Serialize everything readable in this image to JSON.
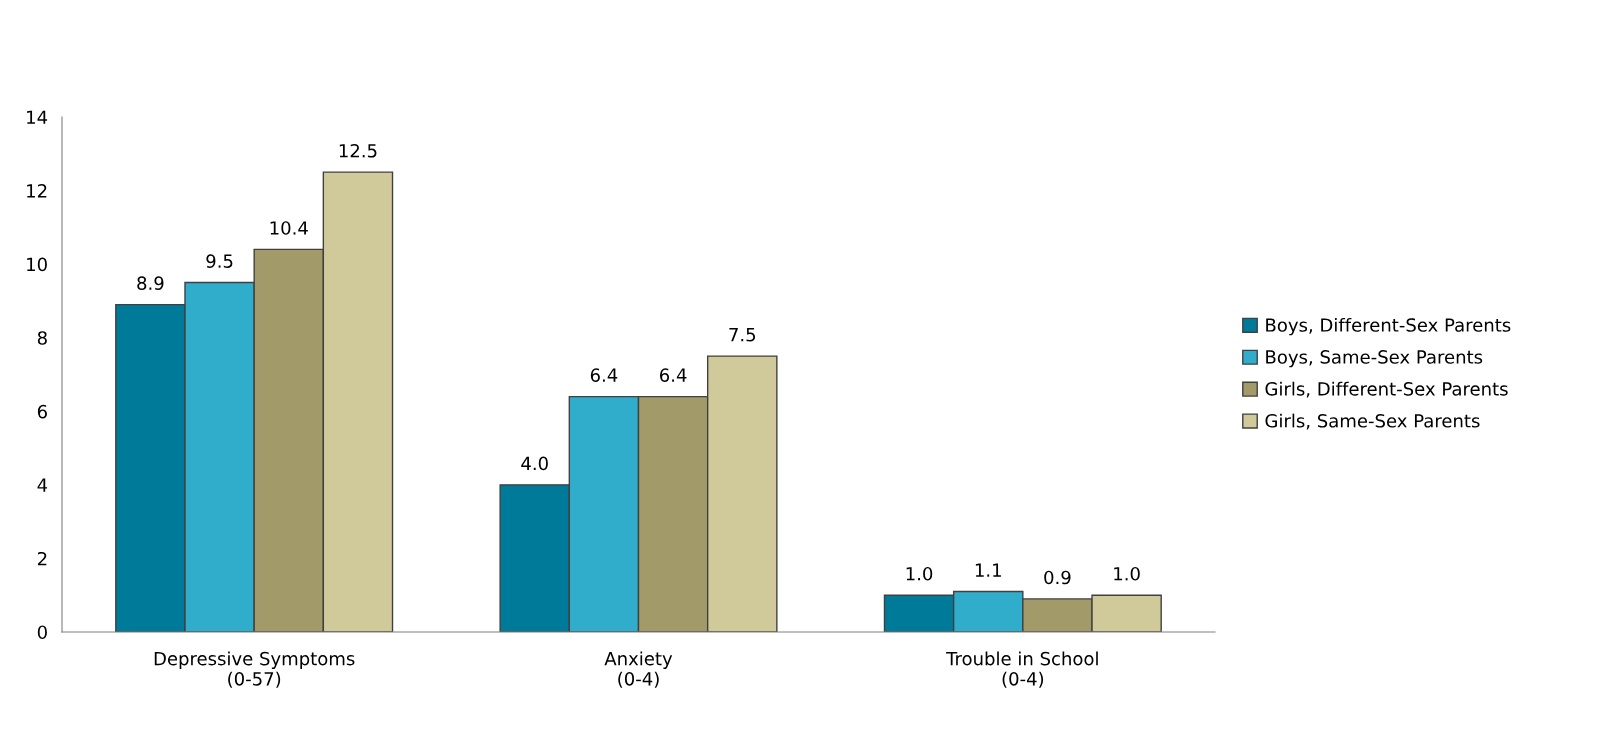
{
  "chart_data": {
    "type": "bar",
    "categories": [
      "Depressive Symptoms\n(0-57)",
      "Anxiety\n(0-4)",
      "Trouble in School\n(0-4)"
    ],
    "series": [
      {
        "name": "Boys, Different-Sex Parents",
        "color": "#007a99",
        "values": [
          8.9,
          4.0,
          1.0
        ],
        "value_labels": [
          "8.9",
          "4.0",
          "1.0"
        ]
      },
      {
        "name": "Boys, Same-Sex Parents",
        "color": "#31adcc",
        "values": [
          9.5,
          6.4,
          1.1
        ],
        "value_labels": [
          "9.5",
          "6.4",
          "1.1"
        ]
      },
      {
        "name": "Girls, Different-Sex Parents",
        "color": "#a39a6a",
        "values": [
          10.4,
          6.4,
          0.9
        ],
        "value_labels": [
          "10.4",
          "6.4",
          "0.9"
        ]
      },
      {
        "name": "Girls, Same-Sex Parents",
        "color": "#d0c99a",
        "values": [
          12.5,
          7.5,
          1.0
        ],
        "value_labels": [
          "12.5",
          "7.5",
          "1.0"
        ]
      }
    ],
    "ylim": [
      0,
      14
    ],
    "yticks": [
      0,
      2,
      4,
      6,
      8,
      10,
      12,
      14
    ],
    "grid": false,
    "legend": "right"
  }
}
